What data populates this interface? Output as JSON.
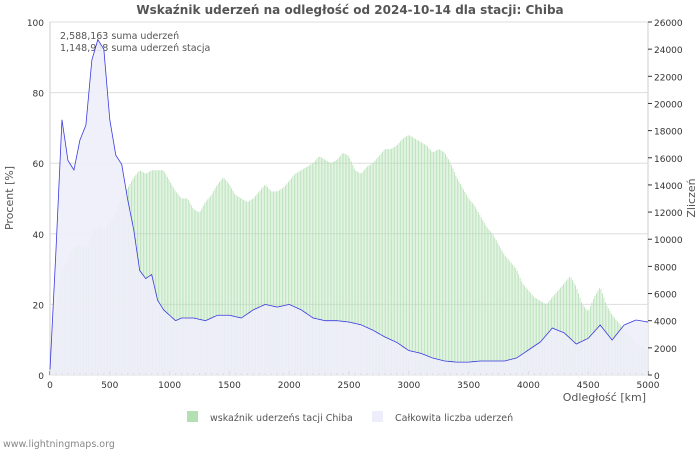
{
  "chart_data": {
    "type": "bar",
    "title": "Wskaźnik uderzeń na odległość od 2024-10-14 dla stacji: Chiba",
    "xlabel": "Odległość   [km]",
    "ylabel": "Procent   [%]",
    "y2label": "Zliczeń",
    "xlim": [
      0,
      5000
    ],
    "ylim": [
      0,
      100
    ],
    "y2lim": [
      0,
      26000
    ],
    "xticks": [
      0,
      500,
      1000,
      1500,
      2000,
      2500,
      3000,
      3500,
      4000,
      4500,
      5000
    ],
    "yticks": [
      0,
      20,
      40,
      60,
      80,
      100
    ],
    "y2ticks": [
      0,
      2000,
      4000,
      6000,
      8000,
      10000,
      12000,
      14000,
      16000,
      18000,
      20000,
      22000,
      24000,
      26000
    ],
    "annotations": [
      "2,588,163 suma uderzeń",
      "1,148,938 suma uderzeń stacja"
    ],
    "legend": {
      "placement": "bottom",
      "items": [
        "wskaźnik uderzeńs tacji Chiba",
        "Całkowita liczba uderzeń"
      ]
    },
    "colors": {
      "bars": "#b3dfb3",
      "line": "#3a3ae0",
      "area": "#eeeefa"
    },
    "grid": true,
    "series": [
      {
        "name": "wskaźnik uderzeńs tacji Chiba",
        "axis": "left",
        "x_step": 50,
        "values": [
          5,
          20,
          30,
          33,
          36,
          37,
          36,
          40,
          42,
          41,
          43,
          46,
          50,
          53,
          56,
          58,
          57,
          58,
          58,
          58,
          55,
          52,
          50,
          50,
          47,
          46,
          49,
          51,
          54,
          56,
          54,
          51,
          50,
          49,
          50,
          52,
          54,
          52,
          52,
          53,
          55,
          57,
          58,
          59,
          60,
          62,
          61,
          60,
          61,
          63,
          62,
          58,
          57,
          59,
          60,
          62,
          64,
          64,
          65,
          67,
          68,
          67,
          66,
          65,
          63,
          64,
          63,
          60,
          56,
          53,
          50,
          48,
          45,
          42,
          40,
          37,
          34,
          32,
          30,
          26,
          24,
          22,
          21,
          20,
          22,
          24,
          26,
          28,
          25,
          20,
          18,
          22,
          25,
          20,
          17,
          15,
          13,
          11,
          9,
          8,
          7
        ]
      },
      {
        "name": "Całkowita liczba uderzeń",
        "axis": "right",
        "x": [
          0,
          50,
          100,
          150,
          200,
          250,
          300,
          350,
          400,
          450,
          500,
          550,
          600,
          650,
          700,
          750,
          800,
          850,
          900,
          950,
          1000,
          1050,
          1100,
          1200,
          1300,
          1400,
          1500,
          1600,
          1700,
          1800,
          1900,
          2000,
          2100,
          2200,
          2300,
          2400,
          2500,
          2600,
          2700,
          2800,
          2900,
          3000,
          3100,
          3200,
          3300,
          3400,
          3500,
          3600,
          3700,
          3800,
          3900,
          4000,
          4100,
          4200,
          4300,
          4400,
          4500,
          4600,
          4700,
          4800,
          4900,
          5000
        ],
        "values": [
          400,
          9200,
          18800,
          15800,
          15100,
          17300,
          18400,
          23200,
          24700,
          24000,
          18800,
          16200,
          15500,
          12900,
          10700,
          7700,
          7100,
          7400,
          5500,
          4800,
          4400,
          4000,
          4200,
          4200,
          4000,
          4400,
          4400,
          4200,
          4800,
          5200,
          5000,
          5200,
          4800,
          4200,
          4000,
          4000,
          3900,
          3700,
          3300,
          2800,
          2400,
          1800,
          1600,
          1250,
          1030,
          950,
          950,
          1030,
          1030,
          1030,
          1250,
          1840,
          2430,
          3460,
          3100,
          2280,
          2700,
          3680,
          2580,
          3680,
          4050,
          3900
        ]
      }
    ]
  },
  "footer": "www.lightningmaps.org"
}
